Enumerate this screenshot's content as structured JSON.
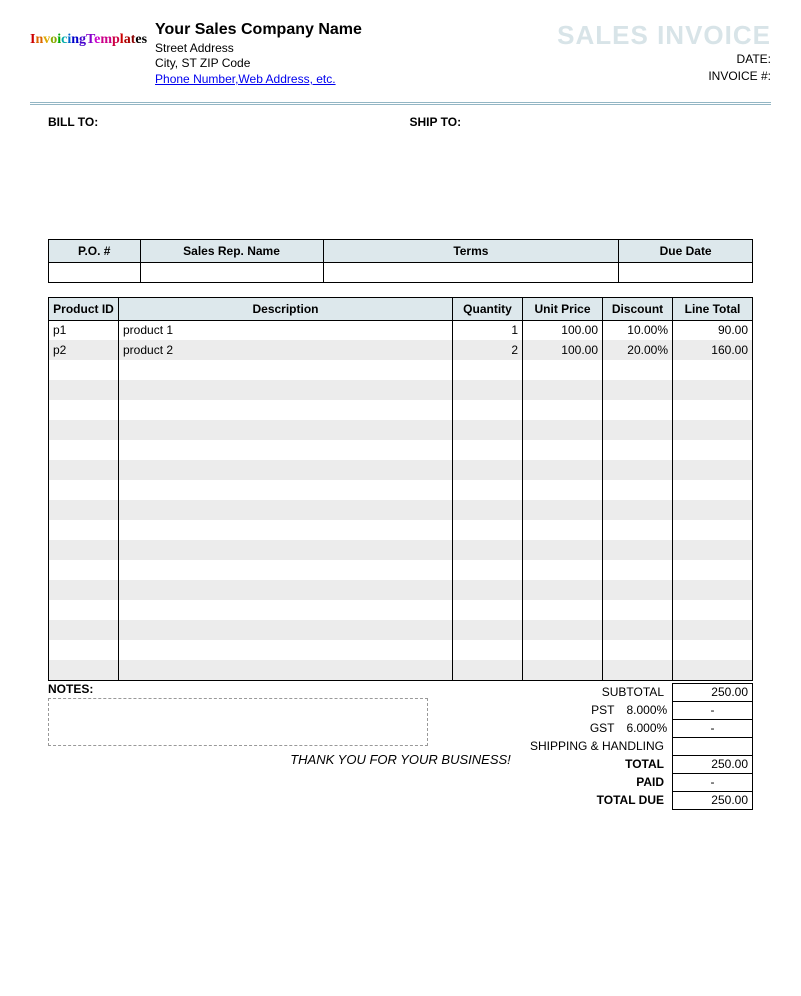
{
  "logo": {
    "text": "InvoicingTemplates"
  },
  "company": {
    "name": "Your Sales Company Name",
    "street": "Street Address",
    "city_line": "City, ST  ZIP Code",
    "contact": "Phone Number,Web Address, etc."
  },
  "doc": {
    "title": "SALES INVOICE",
    "date_label": "DATE:",
    "invoice_no_label": "INVOICE #:"
  },
  "sections": {
    "bill_to": "BILL TO:",
    "ship_to": "SHIP TO:"
  },
  "meta_table": {
    "headers": [
      "P.O. #",
      "Sales Rep. Name",
      "Terms",
      "Due Date"
    ],
    "col_widths_pct": [
      13,
      26,
      42,
      19
    ]
  },
  "items": {
    "headers": [
      "Product ID",
      "Description",
      "Quantity",
      "Unit Price",
      "Discount",
      "Line Total"
    ],
    "rows": [
      {
        "pid": "p1",
        "desc": "product 1",
        "qty": "1",
        "price": "100.00",
        "disc": "10.00%",
        "total": "90.00"
      },
      {
        "pid": "p2",
        "desc": "product 2",
        "qty": "2",
        "price": "100.00",
        "disc": "20.00%",
        "total": "160.00"
      }
    ],
    "blank_rows": 16,
    "stripe_color": "#ececec",
    "header_bg": "#dde8ec"
  },
  "totals": {
    "subtotal_label": "SUBTOTAL",
    "subtotal": "250.00",
    "pst_label": "PST",
    "pst_pct": "8.000%",
    "pst_val": "-",
    "gst_label": "GST",
    "gst_pct": "6.000%",
    "gst_val": "-",
    "ship_label": "SHIPPING & HANDLING",
    "ship_val": "",
    "total_label": "TOTAL",
    "total": "250.00",
    "paid_label": "PAID",
    "paid": "-",
    "due_label": "TOTAL DUE",
    "due": "250.00"
  },
  "notes_label": "NOTES:",
  "footer": "THANK YOU FOR YOUR BUSINESS!"
}
